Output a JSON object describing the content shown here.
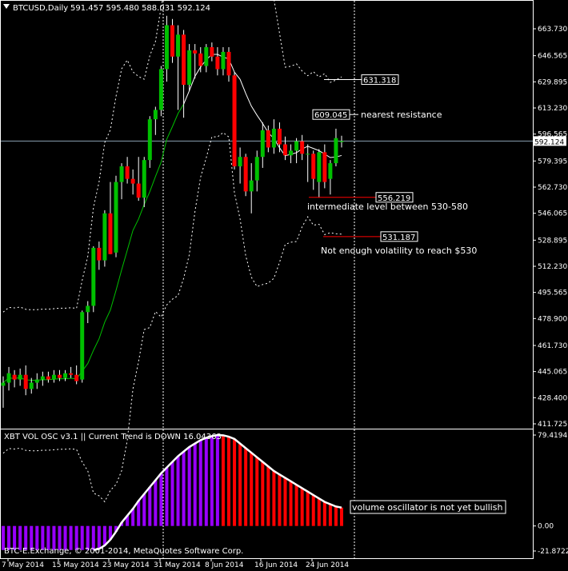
{
  "header": {
    "symbol": "BTCUSD,Daily",
    "ohlc": "591.457 595.480 588.031 592.124"
  },
  "copyright": "BTC-E.Exchange, © 2001-2014, MetaQuotes Software Corp.",
  "colors": {
    "background": "#000000",
    "bull": "#00c000",
    "bear": "#ff0000",
    "purple": "#9900ff",
    "ma": "#00c000",
    "band": "#ffffff"
  },
  "chart_data": [
    {
      "type": "candlestick",
      "title": "BTCUSD,Daily",
      "ylim": [
        411.725,
        680.0
      ],
      "y_ticks": [
        "663.730",
        "646.565",
        "629.895",
        "613.230",
        "596.565",
        "579.395",
        "562.730",
        "546.065",
        "528.895",
        "512.230",
        "495.565",
        "478.900",
        "461.730",
        "445.065",
        "428.400",
        "411.725"
      ],
      "x_ticks": [
        "7 May 2014",
        "15 May 2014",
        "23 May 2014",
        "31 May 2014",
        "8 Jun 2014",
        "16 Jun 2014",
        "24 Jun 2014"
      ],
      "current_price": "592.124",
      "candles": [
        {
          "o": 436,
          "h": 442,
          "l": 422,
          "c": 438
        },
        {
          "o": 438,
          "h": 448,
          "l": 433,
          "c": 444
        },
        {
          "o": 443,
          "h": 446,
          "l": 435,
          "c": 440
        },
        {
          "o": 440,
          "h": 447,
          "l": 436,
          "c": 443
        },
        {
          "o": 443,
          "h": 449,
          "l": 430,
          "c": 434
        },
        {
          "o": 434,
          "h": 441,
          "l": 431,
          "c": 438
        },
        {
          "o": 438,
          "h": 444,
          "l": 434,
          "c": 440
        },
        {
          "o": 440,
          "h": 445,
          "l": 436,
          "c": 442
        },
        {
          "o": 442,
          "h": 445,
          "l": 438,
          "c": 440
        },
        {
          "o": 440,
          "h": 446,
          "l": 438,
          "c": 443
        },
        {
          "o": 443,
          "h": 446,
          "l": 439,
          "c": 441
        },
        {
          "o": 441,
          "h": 446,
          "l": 439,
          "c": 444
        },
        {
          "o": 444,
          "h": 448,
          "l": 441,
          "c": 443
        },
        {
          "o": 443,
          "h": 449,
          "l": 437,
          "c": 439
        },
        {
          "o": 440,
          "h": 484,
          "l": 438,
          "c": 483
        },
        {
          "o": 483,
          "h": 490,
          "l": 476,
          "c": 487
        },
        {
          "o": 487,
          "h": 525,
          "l": 483,
          "c": 524
        },
        {
          "o": 524,
          "h": 528,
          "l": 510,
          "c": 516
        },
        {
          "o": 516,
          "h": 548,
          "l": 512,
          "c": 546
        },
        {
          "o": 546,
          "h": 566,
          "l": 520,
          "c": 520
        },
        {
          "o": 521,
          "h": 570,
          "l": 518,
          "c": 566
        },
        {
          "o": 566,
          "h": 578,
          "l": 555,
          "c": 576
        },
        {
          "o": 576,
          "h": 582,
          "l": 565,
          "c": 568
        },
        {
          "o": 568,
          "h": 574,
          "l": 558,
          "c": 565
        },
        {
          "o": 565,
          "h": 582,
          "l": 554,
          "c": 556
        },
        {
          "o": 556,
          "h": 582,
          "l": 550,
          "c": 580
        },
        {
          "o": 580,
          "h": 608,
          "l": 575,
          "c": 606
        },
        {
          "o": 606,
          "h": 614,
          "l": 596,
          "c": 612
        },
        {
          "o": 612,
          "h": 640,
          "l": 608,
          "c": 638
        },
        {
          "o": 638,
          "h": 672,
          "l": 630,
          "c": 666
        },
        {
          "o": 666,
          "h": 670,
          "l": 642,
          "c": 646
        },
        {
          "o": 646,
          "h": 666,
          "l": 612,
          "c": 660
        },
        {
          "o": 660,
          "h": 663,
          "l": 607,
          "c": 628
        },
        {
          "o": 628,
          "h": 654,
          "l": 624,
          "c": 650
        },
        {
          "o": 650,
          "h": 654,
          "l": 632,
          "c": 648
        },
        {
          "o": 648,
          "h": 652,
          "l": 636,
          "c": 640
        },
        {
          "o": 640,
          "h": 654,
          "l": 636,
          "c": 652
        },
        {
          "o": 652,
          "h": 655,
          "l": 643,
          "c": 646
        },
        {
          "o": 646,
          "h": 652,
          "l": 634,
          "c": 638
        },
        {
          "o": 638,
          "h": 652,
          "l": 634,
          "c": 649
        },
        {
          "o": 649,
          "h": 652,
          "l": 630,
          "c": 634
        },
        {
          "o": 634,
          "h": 636,
          "l": 574,
          "c": 576
        },
        {
          "o": 576,
          "h": 588,
          "l": 565,
          "c": 582
        },
        {
          "o": 582,
          "h": 584,
          "l": 557,
          "c": 560
        },
        {
          "o": 560,
          "h": 578,
          "l": 546,
          "c": 567
        },
        {
          "o": 567,
          "h": 586,
          "l": 560,
          "c": 582
        },
        {
          "o": 582,
          "h": 604,
          "l": 575,
          "c": 599
        },
        {
          "o": 599,
          "h": 602,
          "l": 585,
          "c": 588
        },
        {
          "o": 588,
          "h": 606,
          "l": 584,
          "c": 600
        },
        {
          "o": 600,
          "h": 604,
          "l": 585,
          "c": 590
        },
        {
          "o": 590,
          "h": 595,
          "l": 580,
          "c": 583
        },
        {
          "o": 583,
          "h": 590,
          "l": 578,
          "c": 586
        },
        {
          "o": 586,
          "h": 594,
          "l": 578,
          "c": 592
        },
        {
          "o": 592,
          "h": 596,
          "l": 580,
          "c": 584
        },
        {
          "o": 584,
          "h": 590,
          "l": 566,
          "c": 584
        },
        {
          "o": 584,
          "h": 586,
          "l": 561,
          "c": 568
        },
        {
          "o": 566,
          "h": 587,
          "l": 556,
          "c": 585
        },
        {
          "o": 585,
          "h": 590,
          "l": 562,
          "c": 566
        },
        {
          "o": 568,
          "h": 580,
          "l": 558,
          "c": 578
        },
        {
          "o": 578,
          "h": 600,
          "l": 576,
          "c": 594
        },
        {
          "o": 591.457,
          "h": 595.48,
          "l": 588.031,
          "c": 592.124
        }
      ],
      "annotations": [
        {
          "label": "631.318",
          "text": ""
        },
        {
          "label": "609.045",
          "text": "nearest resistance"
        },
        {
          "label": "556.219",
          "text": "intermediate level between 530-580"
        },
        {
          "label": "531.187",
          "text": "Not enough volatility to reach $530"
        }
      ]
    },
    {
      "type": "bar",
      "title": "XBT VOL OSC v3.1 || Current Trend is DOWN 16.04363",
      "ylim": [
        -21.87226,
        79.4194
      ],
      "y_ticks": [
        "79.4194",
        "0.00",
        "-21.87226"
      ],
      "values": [
        -21,
        -21,
        -21,
        -21,
        -21,
        -21,
        -21,
        -21,
        -21,
        -21,
        -21,
        -21,
        -21,
        -21,
        -21,
        -21,
        -21,
        -20,
        -17,
        -12,
        -5,
        3,
        9,
        15,
        22,
        28,
        34,
        40,
        46,
        51,
        56,
        61,
        65,
        69,
        72,
        75,
        77,
        78.5,
        79.4,
        79.2,
        78,
        76,
        72,
        68,
        64,
        60,
        56,
        52,
        48,
        45,
        42,
        39,
        36,
        33,
        30,
        27,
        24,
        21,
        19,
        17,
        16.04363
      ],
      "bar_colors_rule": "purple while rising, red while falling",
      "annotation": "volume oscillator is not yet bullish"
    }
  ]
}
